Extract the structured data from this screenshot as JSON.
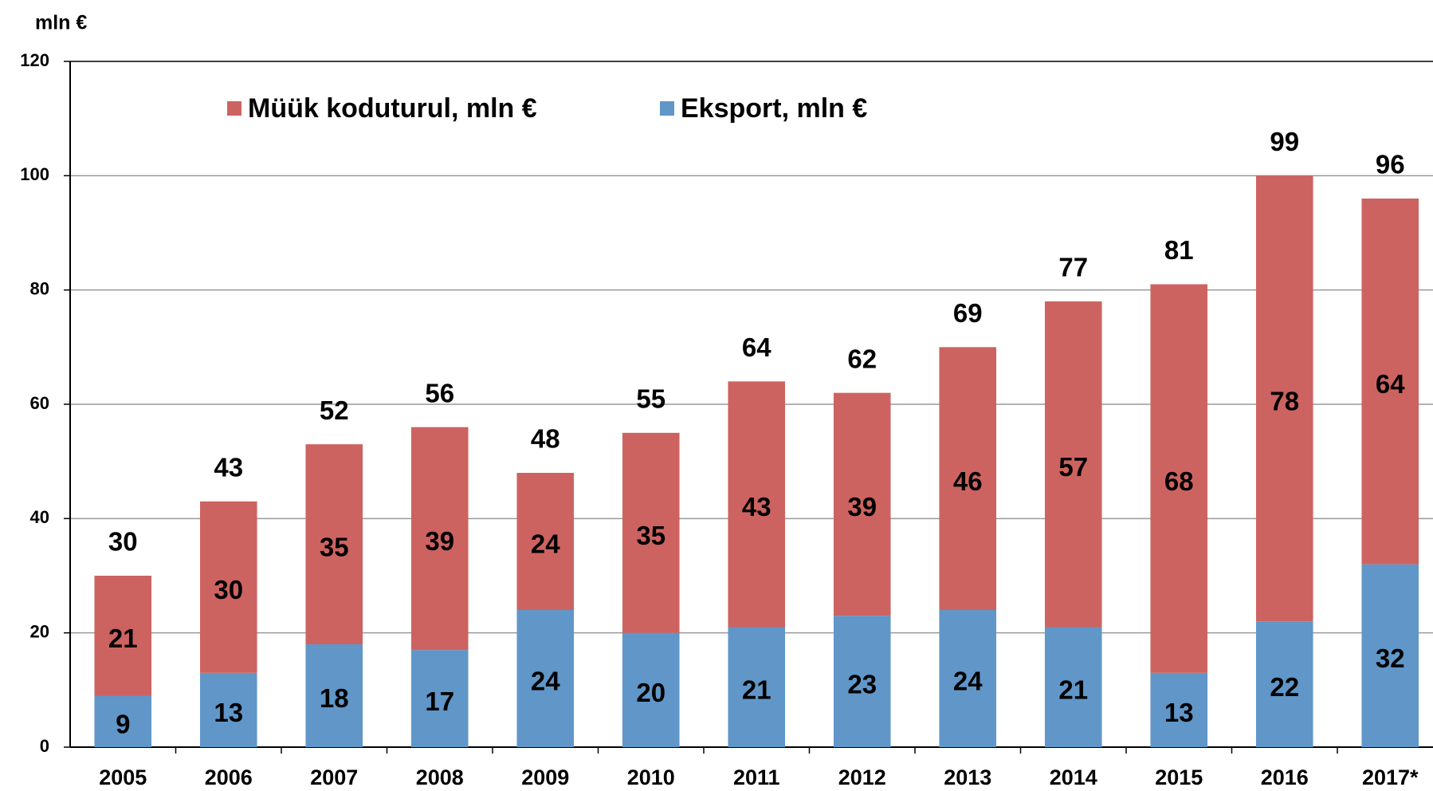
{
  "chart_data": {
    "type": "stacked_bar",
    "unit_label": "mln €",
    "categories": [
      "2005",
      "2006",
      "2007",
      "2008",
      "2009",
      "2010",
      "2011",
      "2012",
      "2013",
      "2014",
      "2015",
      "2016",
      "2017*"
    ],
    "series": [
      {
        "name": "Eksport, mln €",
        "color": "#6096c8",
        "values": [
          9,
          13,
          18,
          17,
          24,
          20,
          21,
          23,
          24,
          21,
          13,
          22,
          32
        ]
      },
      {
        "name": "Müük koduturul, mln €",
        "color": "#cd6360",
        "values": [
          21,
          30,
          35,
          39,
          24,
          35,
          43,
          39,
          46,
          57,
          68,
          78,
          64
        ]
      }
    ],
    "totals": [
      30,
      43,
      52,
      56,
      48,
      55,
      64,
      62,
      69,
      77,
      81,
      99,
      96
    ],
    "ylim": [
      0,
      120
    ],
    "yticks": [
      0,
      20,
      40,
      60,
      80,
      100,
      120
    ],
    "grid": true
  }
}
